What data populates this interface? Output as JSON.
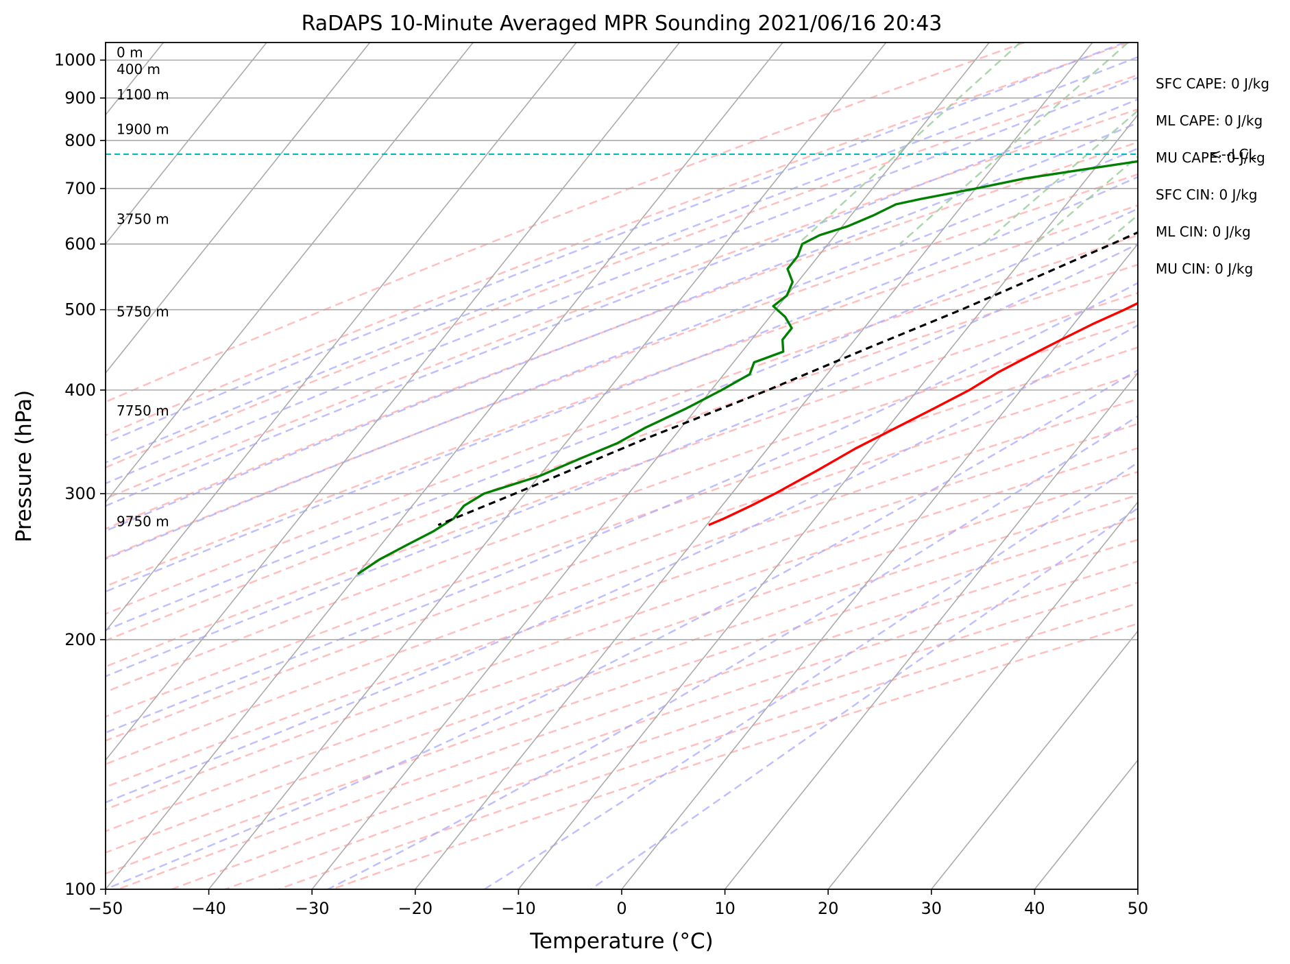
{
  "chart_data": {
    "type": "line",
    "title": "RaDAPS 10-Minute Averaged MPR Sounding 2021/06/16 20:43",
    "xlabel": "Temperature (°C)",
    "ylabel": "Pressure (hPa)",
    "xlim": [
      -50,
      50
    ],
    "ylim": [
      1050,
      100
    ],
    "y_scale": "log",
    "grid": true,
    "x_ticks": [
      -50,
      -40,
      -30,
      -20,
      -10,
      0,
      10,
      20,
      30,
      40,
      50
    ],
    "x_tick_labels": [
      "−50",
      "−40",
      "−30",
      "−20",
      "−10",
      "0",
      "10",
      "20",
      "30",
      "40",
      "50"
    ],
    "y_ticks": [
      1000,
      900,
      800,
      700,
      600,
      500,
      400,
      300,
      200,
      100
    ],
    "y_tick_labels": [
      "1000",
      "900",
      "800",
      "700",
      "600",
      "500",
      "400",
      "300",
      "200",
      "100"
    ],
    "series": [
      {
        "role": "temperature",
        "color": "#ff0000",
        "points": [
          [
            995,
            30.5
          ],
          [
            990,
            27
          ],
          [
            980,
            25
          ],
          [
            965,
            23.3
          ],
          [
            950,
            22.2
          ],
          [
            930,
            21.0
          ],
          [
            910,
            20.2
          ],
          [
            895,
            19.3
          ],
          [
            880,
            18.7
          ],
          [
            865,
            18.2
          ],
          [
            850,
            18.0
          ],
          [
            830,
            17.7
          ],
          [
            800,
            17.3
          ],
          [
            780,
            17.0
          ],
          [
            760,
            16.7
          ],
          [
            740,
            16.3
          ],
          [
            720,
            15.8
          ],
          [
            700,
            15.2
          ],
          [
            680,
            14.6
          ],
          [
            660,
            13.8
          ],
          [
            640,
            12.8
          ],
          [
            620,
            11.8
          ],
          [
            600,
            10.8
          ],
          [
            580,
            9.5
          ],
          [
            560,
            8.2
          ],
          [
            540,
            7.0
          ],
          [
            520,
            5.5
          ],
          [
            500,
            3.8
          ],
          [
            480,
            1.8
          ],
          [
            460,
            0.0
          ],
          [
            440,
            -1.8
          ],
          [
            420,
            -3.6
          ],
          [
            400,
            -5.0
          ],
          [
            380,
            -7.0
          ],
          [
            360,
            -9.2
          ],
          [
            340,
            -11.5
          ],
          [
            320,
            -13.5
          ],
          [
            300,
            -15.8
          ],
          [
            290,
            -17.2
          ],
          [
            280,
            -18.8
          ],
          [
            275,
            -19.8
          ]
        ]
      },
      {
        "role": "dewpoint",
        "color": "#008000",
        "points": [
          [
            995,
            13.0
          ],
          [
            990,
            10.0
          ],
          [
            985,
            8.5
          ],
          [
            975,
            7.3
          ],
          [
            965,
            6.8
          ],
          [
            955,
            6.2
          ],
          [
            945,
            6.5
          ],
          [
            935,
            7.0
          ],
          [
            925,
            7.3
          ],
          [
            910,
            7.2
          ],
          [
            895,
            7.3
          ],
          [
            880,
            7.3
          ],
          [
            865,
            7.3
          ],
          [
            850,
            7.3
          ],
          [
            835,
            7.3
          ],
          [
            825,
            7.5
          ],
          [
            815,
            7.2
          ],
          [
            808,
            7.3
          ],
          [
            800,
            7.0
          ],
          [
            790,
            6.0
          ],
          [
            780,
            2.5
          ],
          [
            770,
            -1.5
          ],
          [
            760,
            -5.0
          ],
          [
            740,
            -10.5
          ],
          [
            720,
            -16.0
          ],
          [
            700,
            -20.0
          ],
          [
            680,
            -24.5
          ],
          [
            670,
            -26.5
          ],
          [
            650,
            -27.8
          ],
          [
            630,
            -29.5
          ],
          [
            615,
            -31.5
          ],
          [
            600,
            -32.5
          ],
          [
            580,
            -32.0
          ],
          [
            560,
            -32.0
          ],
          [
            540,
            -30.5
          ],
          [
            520,
            -30.0
          ],
          [
            505,
            -30.5
          ],
          [
            490,
            -28.5
          ],
          [
            475,
            -27.0
          ],
          [
            460,
            -27.0
          ],
          [
            445,
            -26.0
          ],
          [
            432,
            -28.0
          ],
          [
            418,
            -27.5
          ],
          [
            400,
            -29.0
          ],
          [
            380,
            -31.0
          ],
          [
            360,
            -33.5
          ],
          [
            345,
            -35.0
          ],
          [
            330,
            -37.5
          ],
          [
            315,
            -40.0
          ],
          [
            300,
            -44.0
          ],
          [
            290,
            -45.0
          ],
          [
            280,
            -45.0
          ],
          [
            270,
            -46.0
          ],
          [
            260,
            -47.5
          ],
          [
            250,
            -49.0
          ],
          [
            240,
            -50.0
          ]
        ]
      },
      {
        "role": "parcel",
        "color": "#000000",
        "points": [
          [
            995,
            30.5
          ],
          [
            950,
            26.0
          ],
          [
            900,
            21.5
          ],
          [
            850,
            17.0
          ],
          [
            800,
            13.0
          ],
          [
            770,
            10.0
          ],
          [
            760,
            9.5
          ],
          [
            700,
            5.5
          ],
          [
            650,
            1.5
          ],
          [
            600,
            -2.5
          ],
          [
            550,
            -7.0
          ],
          [
            500,
            -12.0
          ],
          [
            450,
            -18.0
          ],
          [
            400,
            -24.5
          ],
          [
            350,
            -32.5
          ],
          [
            300,
            -41.0
          ],
          [
            275,
            -46.0
          ]
        ]
      }
    ],
    "lcl_pressure": 770,
    "lcl_label": "<--LCL",
    "height_labels": [
      {
        "p": 1000,
        "text": "0 m"
      },
      {
        "p": 955,
        "text": "400 m"
      },
      {
        "p": 890,
        "text": "1100 m"
      },
      {
        "p": 808,
        "text": "1900 m"
      },
      {
        "p": 630,
        "text": "3750 m"
      },
      {
        "p": 487,
        "text": "5750 m"
      },
      {
        "p": 370,
        "text": "7750 m"
      },
      {
        "p": 272,
        "text": "9750 m"
      }
    ],
    "indices": [
      "SFC CAPE: 0 J/kg",
      "ML CAPE: 0 J/kg",
      "MU CAPE: 0 J/kg",
      "SFC CIN: 0 J/kg",
      "ML CIN: 0 J/kg",
      "MU CIN: 0 J/kg"
    ],
    "colors": {
      "isotherm": "#aaaaaa",
      "dry_adiabat": "#ffaaaa",
      "moist_adiabat": "#aaaaff",
      "mixing_ratio": "#99cc99",
      "lcl_line": "#00bfbf"
    }
  }
}
